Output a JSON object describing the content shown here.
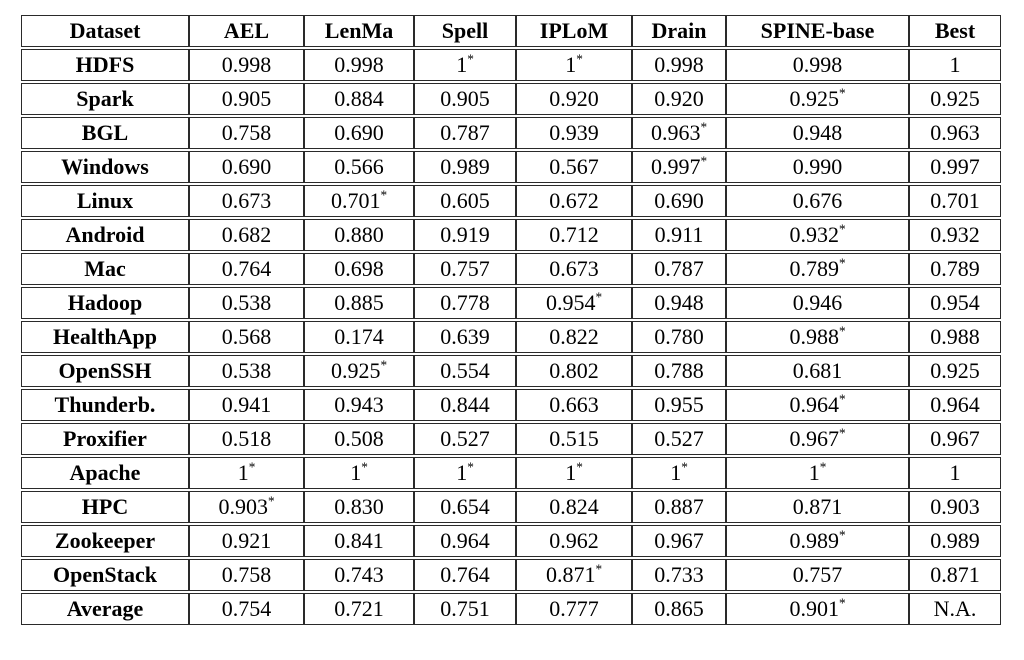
{
  "colors": {
    "background": "#ffffff",
    "text": "#000000",
    "border": "#2a2a2a"
  },
  "table": {
    "columns": [
      "Dataset",
      "AEL",
      "LenMa",
      "Spell",
      "IPLoM",
      "Drain",
      "SPINE-base",
      "Best"
    ],
    "star_marker": "*",
    "rows": [
      {
        "dataset": "HDFS",
        "cells": [
          {
            "value": "0.998",
            "bold": true,
            "star": false
          },
          {
            "value": "0.998",
            "bold": true,
            "star": false
          },
          {
            "value": "1",
            "bold": true,
            "star": true
          },
          {
            "value": "1",
            "bold": true,
            "star": true
          },
          {
            "value": "0.998",
            "bold": true,
            "star": false
          },
          {
            "value": "0.998",
            "bold": true,
            "star": false
          },
          {
            "value": "1",
            "bold": true,
            "star": false
          }
        ]
      },
      {
        "dataset": "Spark",
        "cells": [
          {
            "value": "0.905",
            "bold": true,
            "star": false
          },
          {
            "value": "0.884",
            "bold": false,
            "star": false
          },
          {
            "value": "0.905",
            "bold": true,
            "star": false
          },
          {
            "value": "0.920",
            "bold": true,
            "star": false
          },
          {
            "value": "0.920",
            "bold": true,
            "star": false
          },
          {
            "value": "0.925",
            "bold": true,
            "star": true
          },
          {
            "value": "0.925",
            "bold": true,
            "star": false
          }
        ]
      },
      {
        "dataset": "BGL",
        "cells": [
          {
            "value": "0.758",
            "bold": false,
            "star": false
          },
          {
            "value": "0.690",
            "bold": false,
            "star": false
          },
          {
            "value": "0.787",
            "bold": false,
            "star": false
          },
          {
            "value": "0.939",
            "bold": true,
            "star": false
          },
          {
            "value": "0.963",
            "bold": true,
            "star": true
          },
          {
            "value": "0.948",
            "bold": true,
            "star": false
          },
          {
            "value": "0.963",
            "bold": true,
            "star": false
          }
        ]
      },
      {
        "dataset": "Windows",
        "cells": [
          {
            "value": "0.690",
            "bold": false,
            "star": false
          },
          {
            "value": "0.566",
            "bold": false,
            "star": false
          },
          {
            "value": "0.989",
            "bold": true,
            "star": false
          },
          {
            "value": "0.567",
            "bold": false,
            "star": false
          },
          {
            "value": "0.997",
            "bold": true,
            "star": true
          },
          {
            "value": "0.990",
            "bold": true,
            "star": false
          },
          {
            "value": "0.997",
            "bold": true,
            "star": false
          }
        ]
      },
      {
        "dataset": "Linux",
        "cells": [
          {
            "value": "0.673",
            "bold": false,
            "star": false
          },
          {
            "value": "0.701",
            "bold": false,
            "star": true
          },
          {
            "value": "0.605",
            "bold": false,
            "star": false
          },
          {
            "value": "0.672",
            "bold": false,
            "star": false
          },
          {
            "value": "0.690",
            "bold": false,
            "star": false
          },
          {
            "value": "0.676",
            "bold": false,
            "star": false
          },
          {
            "value": "0.701",
            "bold": false,
            "star": false
          }
        ]
      },
      {
        "dataset": "Android",
        "cells": [
          {
            "value": "0.682",
            "bold": false,
            "star": false
          },
          {
            "value": "0.880",
            "bold": false,
            "star": false
          },
          {
            "value": "0.919",
            "bold": true,
            "star": false
          },
          {
            "value": "0.712",
            "bold": false,
            "star": false
          },
          {
            "value": "0.911",
            "bold": true,
            "star": false
          },
          {
            "value": "0.932",
            "bold": true,
            "star": true
          },
          {
            "value": "0.932",
            "bold": true,
            "star": false
          }
        ]
      },
      {
        "dataset": "Mac",
        "cells": [
          {
            "value": "0.764",
            "bold": false,
            "star": false
          },
          {
            "value": "0.698",
            "bold": false,
            "star": false
          },
          {
            "value": "0.757",
            "bold": false,
            "star": false
          },
          {
            "value": "0.673",
            "bold": false,
            "star": false
          },
          {
            "value": "0.787",
            "bold": false,
            "star": false
          },
          {
            "value": "0.789",
            "bold": false,
            "star": true
          },
          {
            "value": "0.789",
            "bold": false,
            "star": false
          }
        ]
      },
      {
        "dataset": "Hadoop",
        "cells": [
          {
            "value": "0.538",
            "bold": false,
            "star": false
          },
          {
            "value": "0.885",
            "bold": false,
            "star": false
          },
          {
            "value": "0.778",
            "bold": false,
            "star": false
          },
          {
            "value": "0.954",
            "bold": true,
            "star": true
          },
          {
            "value": "0.948",
            "bold": true,
            "star": false
          },
          {
            "value": "0.946",
            "bold": true,
            "star": false
          },
          {
            "value": "0.954",
            "bold": true,
            "star": false
          }
        ]
      },
      {
        "dataset": "HealthApp",
        "cells": [
          {
            "value": "0.568",
            "bold": false,
            "star": false
          },
          {
            "value": "0.174",
            "bold": false,
            "star": false
          },
          {
            "value": "0.639",
            "bold": false,
            "star": false
          },
          {
            "value": "0.822",
            "bold": false,
            "star": false
          },
          {
            "value": "0.780",
            "bold": false,
            "star": false
          },
          {
            "value": "0.988",
            "bold": true,
            "star": true
          },
          {
            "value": "0.988",
            "bold": true,
            "star": false
          }
        ]
      },
      {
        "dataset": "OpenSSH",
        "cells": [
          {
            "value": "0.538",
            "bold": false,
            "star": false
          },
          {
            "value": "0.925",
            "bold": true,
            "star": true
          },
          {
            "value": "0.554",
            "bold": false,
            "star": false
          },
          {
            "value": "0.802",
            "bold": false,
            "star": false
          },
          {
            "value": "0.788",
            "bold": false,
            "star": false
          },
          {
            "value": "0.681",
            "bold": false,
            "star": false
          },
          {
            "value": "0.925",
            "bold": true,
            "star": false
          }
        ]
      },
      {
        "dataset": "Thunderb.",
        "cells": [
          {
            "value": "0.941",
            "bold": true,
            "star": false
          },
          {
            "value": "0.943",
            "bold": true,
            "star": false
          },
          {
            "value": "0.844",
            "bold": false,
            "star": false
          },
          {
            "value": "0.663",
            "bold": false,
            "star": false
          },
          {
            "value": "0.955",
            "bold": true,
            "star": false
          },
          {
            "value": "0.964",
            "bold": true,
            "star": true
          },
          {
            "value": "0.964",
            "bold": true,
            "star": false
          }
        ]
      },
      {
        "dataset": "Proxifier",
        "cells": [
          {
            "value": "0.518",
            "bold": false,
            "star": false
          },
          {
            "value": "0.508",
            "bold": false,
            "star": false
          },
          {
            "value": "0.527",
            "bold": false,
            "star": false
          },
          {
            "value": "0.515",
            "bold": false,
            "star": false
          },
          {
            "value": "0.527",
            "bold": false,
            "star": false
          },
          {
            "value": "0.967",
            "bold": true,
            "star": true
          },
          {
            "value": "0.967",
            "bold": true,
            "star": false
          }
        ]
      },
      {
        "dataset": "Apache",
        "cells": [
          {
            "value": "1",
            "bold": true,
            "star": true
          },
          {
            "value": "1",
            "bold": true,
            "star": true
          },
          {
            "value": "1",
            "bold": true,
            "star": true
          },
          {
            "value": "1",
            "bold": true,
            "star": true
          },
          {
            "value": "1",
            "bold": true,
            "star": true
          },
          {
            "value": "1",
            "bold": true,
            "star": true
          },
          {
            "value": "1",
            "bold": true,
            "star": false
          }
        ]
      },
      {
        "dataset": "HPC",
        "cells": [
          {
            "value": "0.903",
            "bold": true,
            "star": true
          },
          {
            "value": "0.830",
            "bold": false,
            "star": false
          },
          {
            "value": "0.654",
            "bold": false,
            "star": false
          },
          {
            "value": "0.824",
            "bold": false,
            "star": false
          },
          {
            "value": "0.887",
            "bold": false,
            "star": false
          },
          {
            "value": "0.871",
            "bold": false,
            "star": false
          },
          {
            "value": "0.903",
            "bold": true,
            "star": false
          }
        ]
      },
      {
        "dataset": "Zookeeper",
        "cells": [
          {
            "value": "0.921",
            "bold": true,
            "star": false
          },
          {
            "value": "0.841",
            "bold": false,
            "star": false
          },
          {
            "value": "0.964",
            "bold": true,
            "star": false
          },
          {
            "value": "0.962",
            "bold": true,
            "star": false
          },
          {
            "value": "0.967",
            "bold": true,
            "star": false
          },
          {
            "value": "0.989",
            "bold": true,
            "star": true
          },
          {
            "value": "0.989",
            "bold": true,
            "star": false
          }
        ]
      },
      {
        "dataset": "OpenStack",
        "cells": [
          {
            "value": "0.758",
            "bold": false,
            "star": false
          },
          {
            "value": "0.743",
            "bold": false,
            "star": false
          },
          {
            "value": "0.764",
            "bold": false,
            "star": false
          },
          {
            "value": "0.871",
            "bold": false,
            "star": true
          },
          {
            "value": "0.733",
            "bold": false,
            "star": false
          },
          {
            "value": "0.757",
            "bold": false,
            "star": false
          },
          {
            "value": "0.871",
            "bold": false,
            "star": false
          }
        ]
      },
      {
        "dataset": "Average",
        "cells": [
          {
            "value": "0.754",
            "bold": false,
            "star": false
          },
          {
            "value": "0.721",
            "bold": false,
            "star": false
          },
          {
            "value": "0.751",
            "bold": false,
            "star": false
          },
          {
            "value": "0.777",
            "bold": false,
            "star": false
          },
          {
            "value": "0.865",
            "bold": false,
            "star": false
          },
          {
            "value": "0.901",
            "bold": true,
            "star": true
          },
          {
            "value": "N.A.",
            "bold": false,
            "star": false
          }
        ]
      }
    ]
  }
}
